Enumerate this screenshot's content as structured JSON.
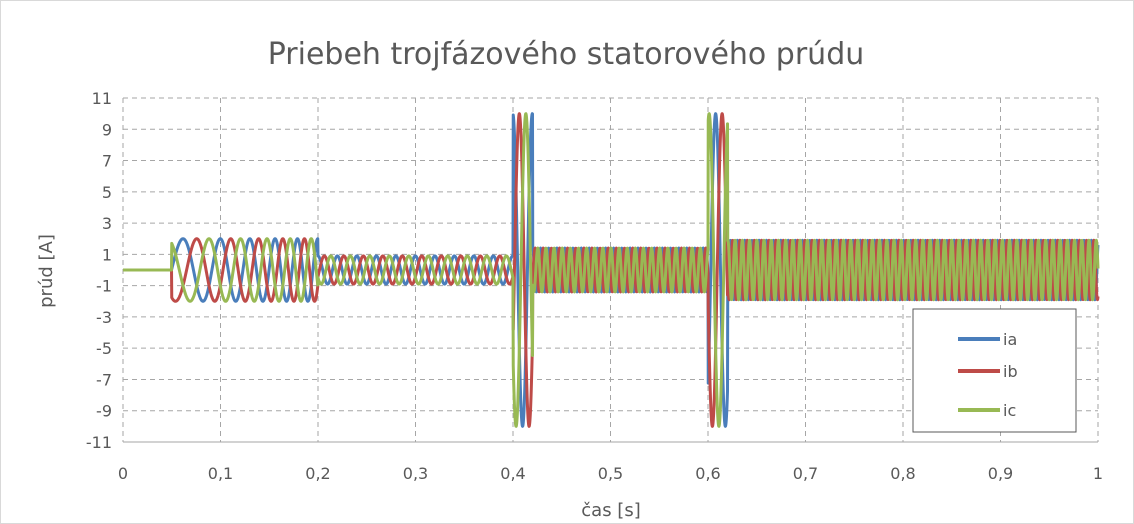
{
  "chart_data": {
    "type": "line",
    "title": "Priebeh trojfázového statorového prúdu",
    "xlabel": "čas [s]",
    "ylabel": "prúd [A]",
    "xlim": [
      0,
      1
    ],
    "ylim": [
      -11,
      11
    ],
    "grid": true,
    "grid_style": "dashed",
    "legend_position": "bottom-right",
    "x_ticks": [
      "0",
      "0,1",
      "0,2",
      "0,3",
      "0,4",
      "0,5",
      "0,6",
      "0,7",
      "0,8",
      "0,9",
      "1"
    ],
    "y_ticks": [
      "11",
      "9",
      "7",
      "5",
      "3",
      "1",
      "-1",
      "-3",
      "-5",
      "-7",
      "-9",
      "-11"
    ],
    "series": [
      {
        "name": "ia",
        "color": "#4a7ebb"
      },
      {
        "name": "ib",
        "color": "#be4b48"
      },
      {
        "name": "ic",
        "color": "#98b954"
      }
    ],
    "segments": [
      {
        "t_start": 0.0,
        "t_end": 0.05,
        "amplitude": 0.0,
        "frequency_hz": 0
      },
      {
        "t_start": 0.05,
        "t_end": 0.2,
        "amplitude": 2.0,
        "frequency_hz_start": 20,
        "frequency_hz_end": 50
      },
      {
        "t_start": 0.2,
        "t_end": 0.4,
        "amplitude": 0.9,
        "frequency_hz": 50
      },
      {
        "t_start": 0.4,
        "t_end": 0.42,
        "amplitude": 10.0,
        "frequency_hz": 50
      },
      {
        "t_start": 0.42,
        "t_end": 0.6,
        "amplitude": 1.4,
        "frequency_hz": 120
      },
      {
        "t_start": 0.6,
        "t_end": 0.62,
        "amplitude": 10.0,
        "frequency_hz": 50
      },
      {
        "t_start": 0.62,
        "t_end": 1.0,
        "amplitude": 1.9,
        "frequency_hz": 135
      }
    ]
  }
}
